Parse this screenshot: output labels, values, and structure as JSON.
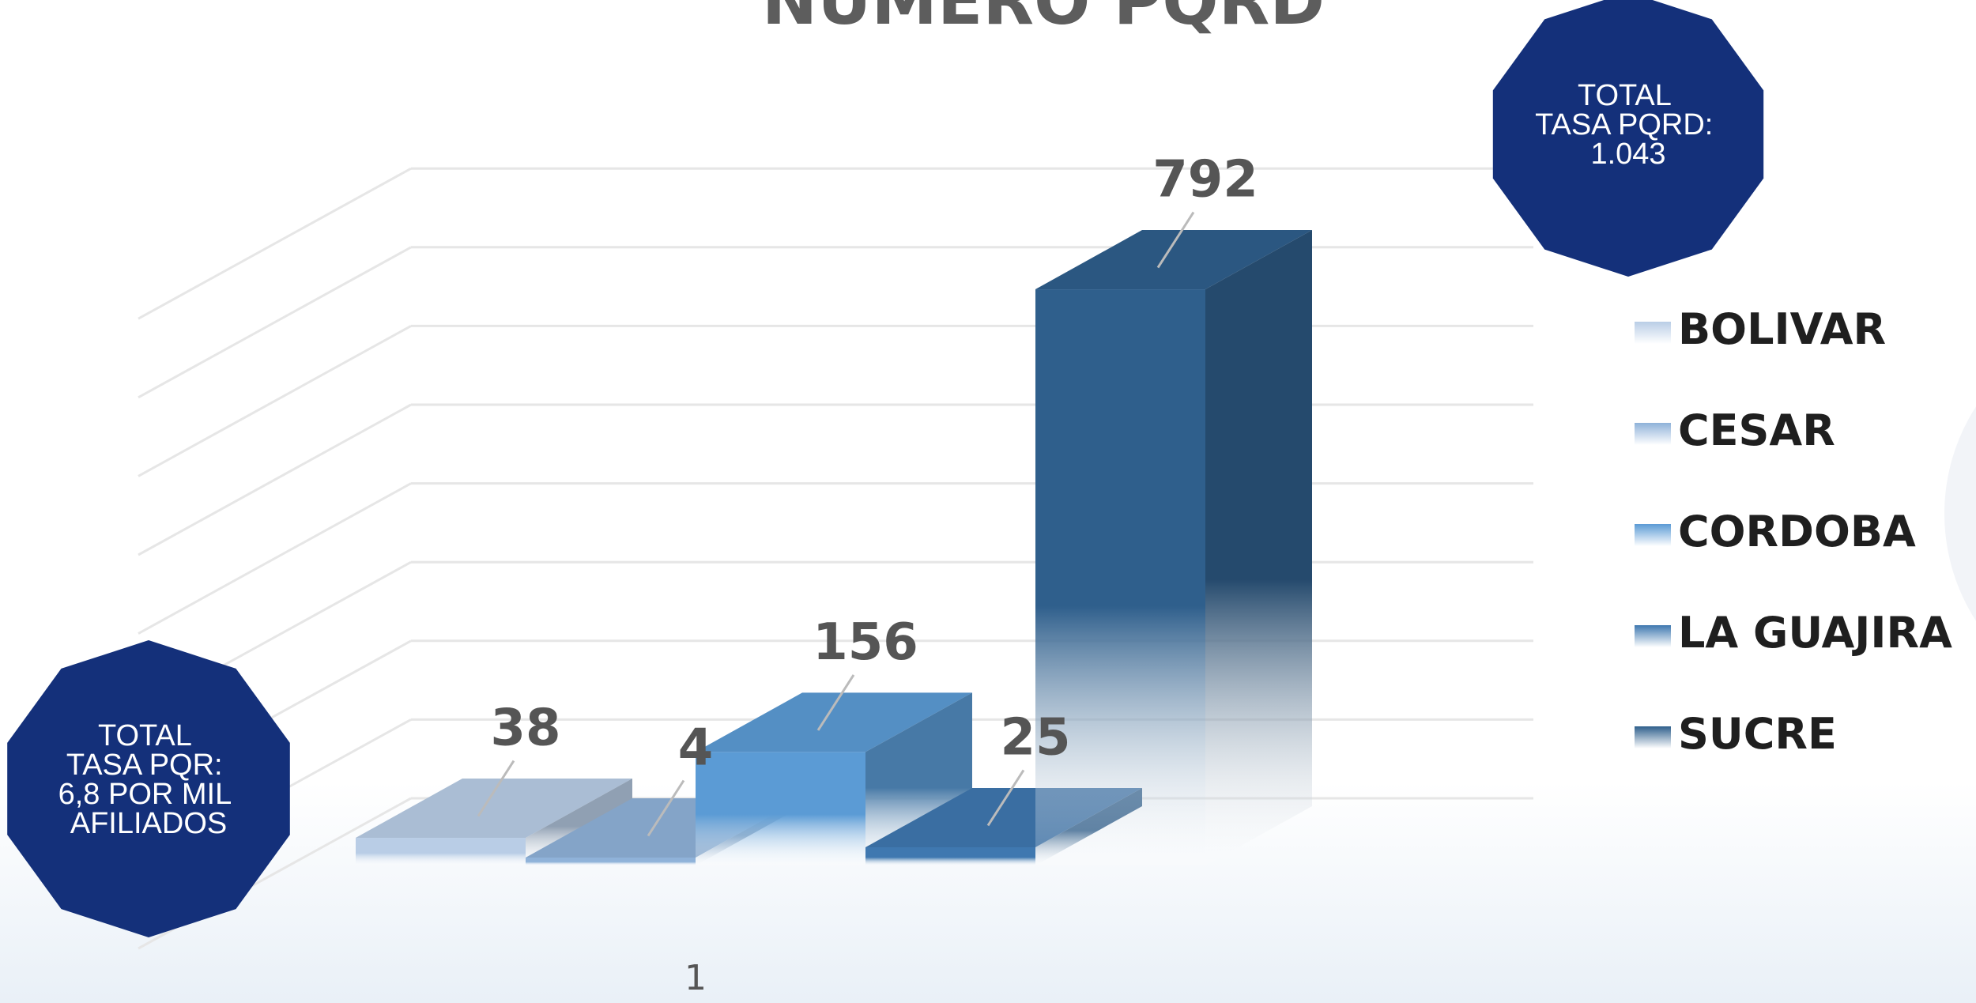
{
  "chart_data": {
    "type": "bar",
    "title": "NÚMERO PQRD",
    "categories": [
      "1"
    ],
    "series": [
      {
        "name": "BOLIVAR",
        "values": [
          38
        ],
        "color": "#b9cde6"
      },
      {
        "name": "CESAR",
        "values": [
          4
        ],
        "color": "#8fb2d9"
      },
      {
        "name": "CORDOBA",
        "values": [
          156
        ],
        "color": "#5b9bd5"
      },
      {
        "name": "LA GUAJIRA",
        "values": [
          25
        ],
        "color": "#3f78b0"
      },
      {
        "name": "SUCRE",
        "values": [
          792
        ],
        "color": "#2f5f8c"
      }
    ],
    "ylim": [
      0,
      900
    ],
    "grid": true,
    "legend": "right"
  },
  "badges": {
    "top_right": {
      "lines": [
        "TOTAL",
        "TASA PQRD:",
        "1.043"
      ]
    },
    "bottom_left": {
      "lines": [
        "TOTAL",
        "TASA PQR:",
        "6,8 POR MIL",
        "AFILIADOS"
      ]
    }
  },
  "colors": {
    "badge": "#14307a",
    "gridline": "#e6e6e6"
  }
}
